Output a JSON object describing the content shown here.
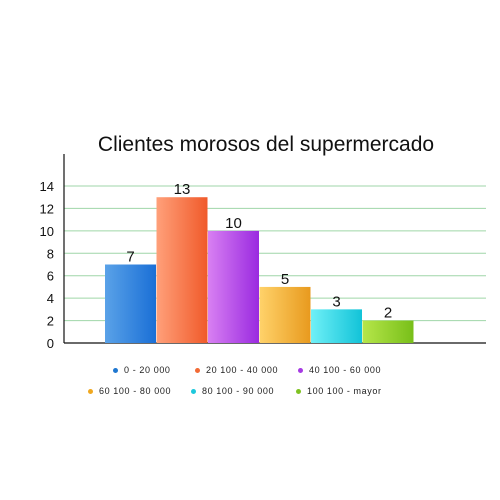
{
  "chart_data": {
    "type": "bar",
    "title": "Clientes morosos del supermercado",
    "xlabel": "",
    "ylabel": "",
    "categories": [
      "0 - 20 000",
      "20 100 - 40 000",
      "40 100 - 60 000",
      "60 100 - 80 000",
      "80 100 - 90 000",
      "100 100 - mayor"
    ],
    "values": [
      7,
      13,
      10,
      5,
      3,
      2
    ],
    "ylim": [
      0,
      14
    ],
    "yticks": [
      "0",
      "2",
      "4",
      "6",
      "8",
      "10",
      "12",
      "14"
    ],
    "grid": true,
    "legend_position": "bottom",
    "colors": [
      {
        "light": "#5aa2e8",
        "dark": "#1a6fd6",
        "dot": "#1f77d0"
      },
      {
        "light": "#ffa07a",
        "dark": "#f05a2a",
        "dot": "#f26a35"
      },
      {
        "light": "#d880f2",
        "dark": "#9a2ae0",
        "dot": "#a63ae3"
      },
      {
        "light": "#ffd26a",
        "dark": "#e89a1e",
        "dot": "#f0a820"
      },
      {
        "light": "#6ff0f7",
        "dark": "#12c3d8",
        "dot": "#1dc8dc"
      },
      {
        "light": "#b6e64a",
        "dark": "#78bf19",
        "dot": "#7fc222"
      }
    ],
    "grid_color": "#9fd6a8"
  }
}
